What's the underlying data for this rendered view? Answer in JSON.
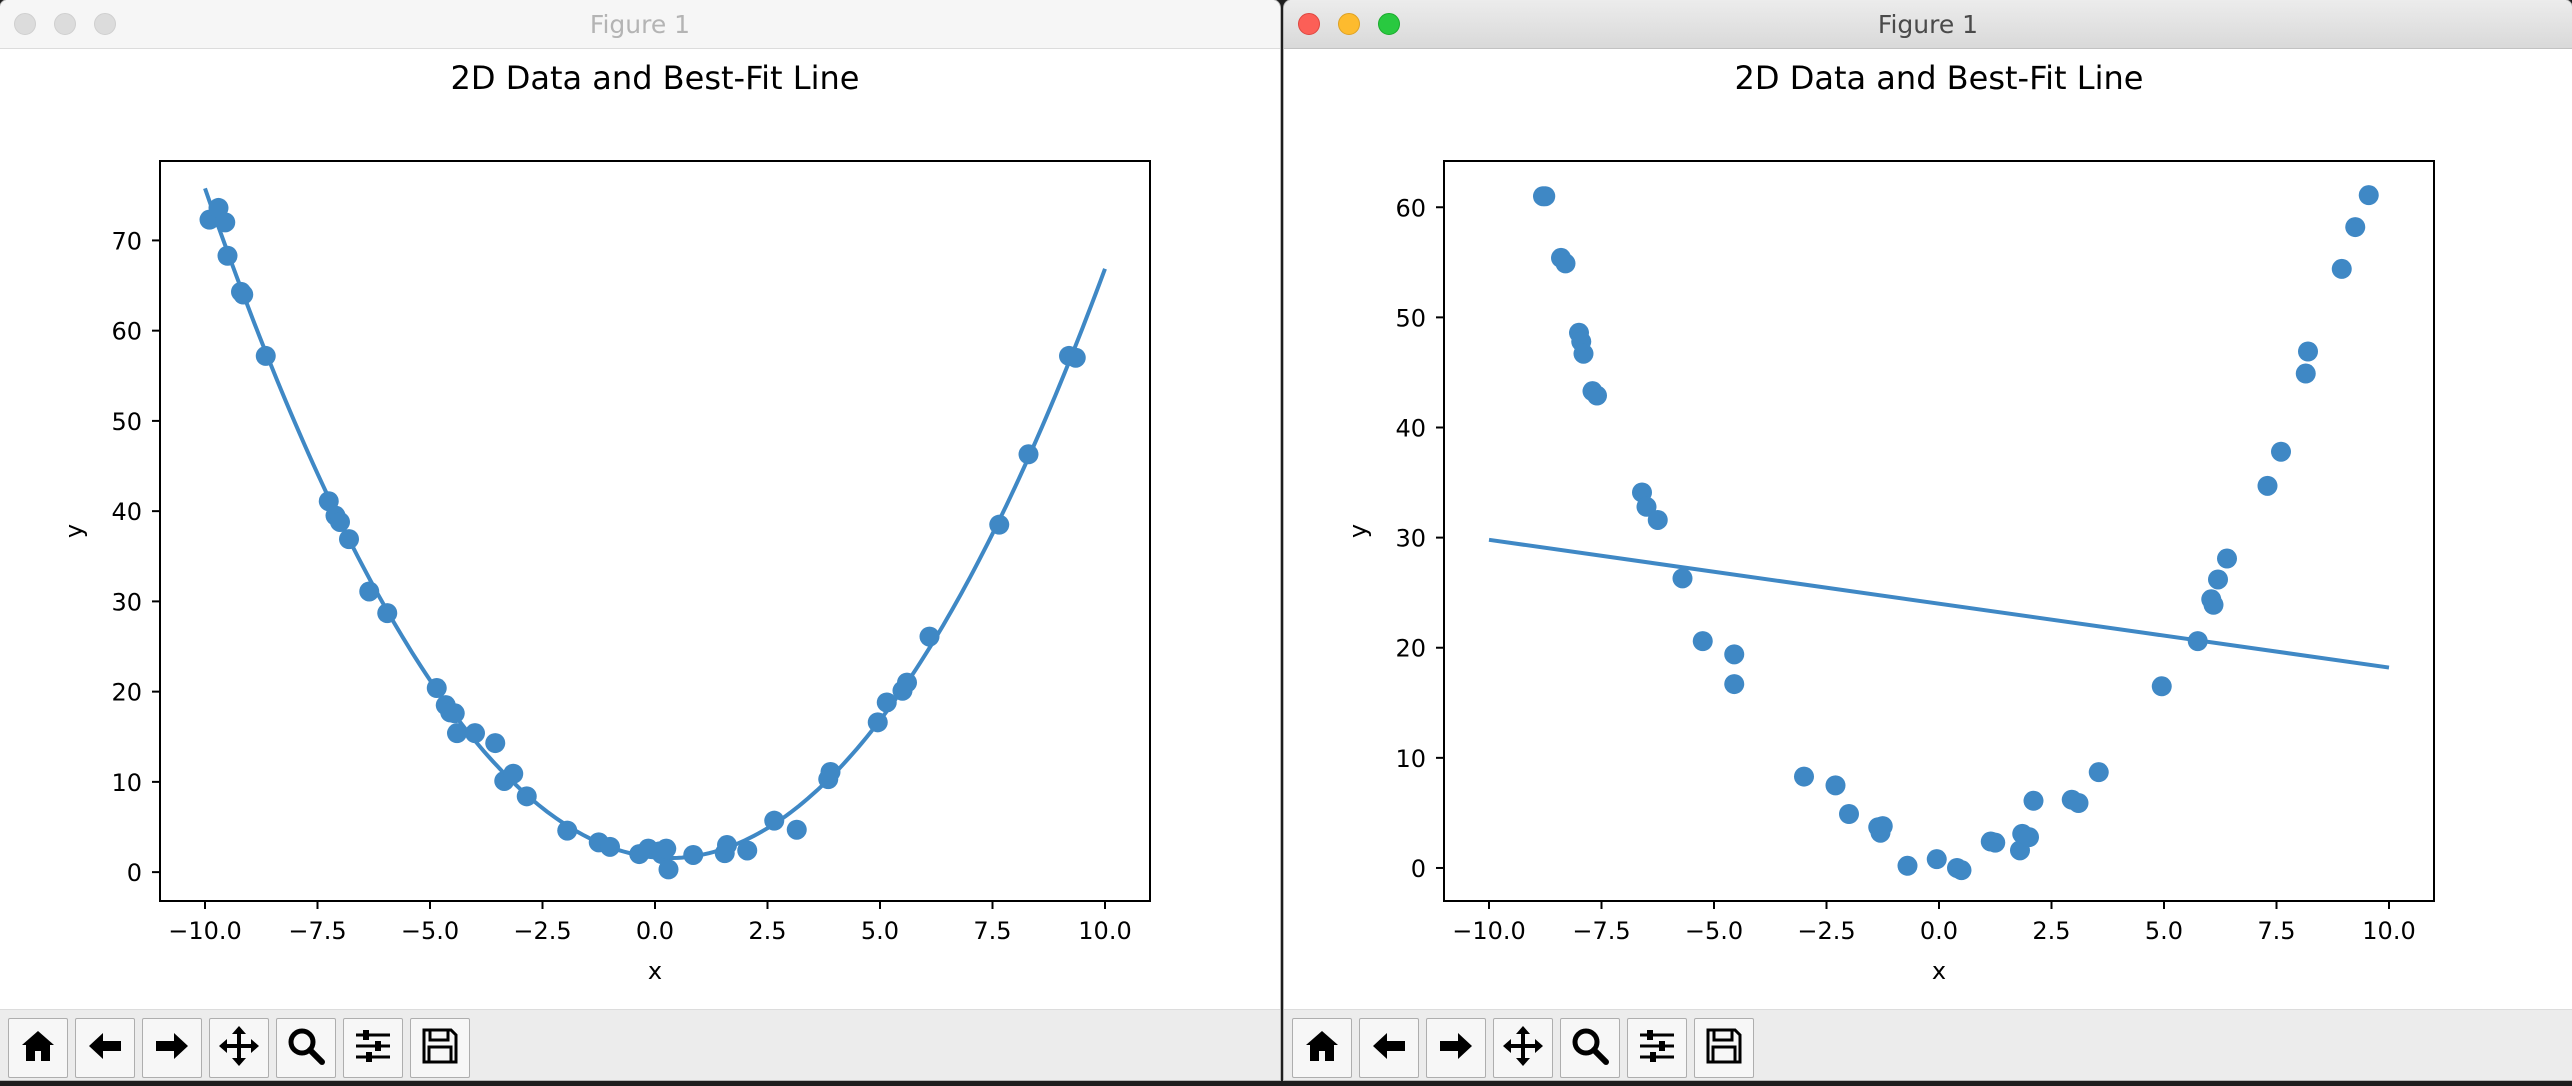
{
  "windows": [
    {
      "title": "Figure 1",
      "state": "inactive",
      "chart_data": {
        "type": "scatter",
        "title": "2D Data and Best-Fit Line",
        "xlabel": "x",
        "ylabel": "y",
        "xlim": [
          -11.0,
          11.0
        ],
        "ylim": [
          -3.2,
          78.8
        ],
        "xticks": [
          -10,
          -7.5,
          -5,
          -2.5,
          0,
          2.5,
          5,
          7.5,
          10
        ],
        "xtick_labels": [
          "−10.0",
          "−7.5",
          "−5.0",
          "−2.5",
          "0.0",
          "2.5",
          "5.0",
          "7.5",
          "10.0"
        ],
        "yticks": [
          0,
          10,
          20,
          30,
          40,
          50,
          60,
          70
        ],
        "ytick_labels": [
          "0",
          "10",
          "20",
          "30",
          "40",
          "50",
          "60",
          "70"
        ],
        "grid": false,
        "point_color": "#3f88c5",
        "line_color": "#3f88c5",
        "points": [
          [
            -9.9,
            72.3
          ],
          [
            -9.7,
            73.6
          ],
          [
            -9.55,
            72.0
          ],
          [
            -9.5,
            68.3
          ],
          [
            -9.2,
            64.3
          ],
          [
            -9.15,
            64.0
          ],
          [
            -8.65,
            57.2
          ],
          [
            -7.25,
            41.1
          ],
          [
            -7.1,
            39.5
          ],
          [
            -7.0,
            38.8
          ],
          [
            -6.8,
            36.9
          ],
          [
            -6.35,
            31.1
          ],
          [
            -5.95,
            28.7
          ],
          [
            -4.85,
            20.4
          ],
          [
            -4.65,
            18.5
          ],
          [
            -4.55,
            17.7
          ],
          [
            -4.45,
            17.6
          ],
          [
            -4.4,
            15.4
          ],
          [
            -4.0,
            15.4
          ],
          [
            -3.55,
            14.3
          ],
          [
            -3.35,
            10.1
          ],
          [
            -3.15,
            10.9
          ],
          [
            -2.85,
            8.4
          ],
          [
            -1.95,
            4.6
          ],
          [
            -1.25,
            3.3
          ],
          [
            -1.0,
            2.8
          ],
          [
            -0.35,
            2.0
          ],
          [
            -0.15,
            2.6
          ],
          [
            0.1,
            2.3
          ],
          [
            0.15,
            2.0
          ],
          [
            0.25,
            2.6
          ],
          [
            0.3,
            0.3
          ],
          [
            0.85,
            1.9
          ],
          [
            1.55,
            2.1
          ],
          [
            1.6,
            3.0
          ],
          [
            2.05,
            2.4
          ],
          [
            2.65,
            5.7
          ],
          [
            3.15,
            4.7
          ],
          [
            3.85,
            10.3
          ],
          [
            3.9,
            11.1
          ],
          [
            4.95,
            16.6
          ],
          [
            5.15,
            18.8
          ],
          [
            5.5,
            20.1
          ],
          [
            5.6,
            21.0
          ],
          [
            6.1,
            26.1
          ],
          [
            7.65,
            38.5
          ],
          [
            8.3,
            46.3
          ],
          [
            9.2,
            57.2
          ],
          [
            9.35,
            57.0
          ]
        ],
        "fit_curve": {
          "x": [
            -10.0,
            10.0
          ],
          "y_at_ends": [
            75.5,
            66.7
          ]
        }
      }
    },
    {
      "title": "Figure 1",
      "state": "active",
      "chart_data": {
        "type": "scatter",
        "title": "2D Data and Best-Fit Line",
        "xlabel": "x",
        "ylabel": "y",
        "xlim": [
          -11.0,
          11.0
        ],
        "ylim": [
          -3.0,
          64.2
        ],
        "xticks": [
          -10,
          -7.5,
          -5,
          -2.5,
          0,
          2.5,
          5,
          7.5,
          10
        ],
        "xtick_labels": [
          "−10.0",
          "−7.5",
          "−5.0",
          "−2.5",
          "0.0",
          "2.5",
          "5.0",
          "7.5",
          "10.0"
        ],
        "yticks": [
          0,
          10,
          20,
          30,
          40,
          50,
          60
        ],
        "ytick_labels": [
          "0",
          "10",
          "20",
          "30",
          "40",
          "50",
          "60"
        ],
        "grid": false,
        "point_color": "#3f88c5",
        "line_color": "#3f88c5",
        "points": [
          [
            -8.8,
            61.0
          ],
          [
            -8.75,
            61.0
          ],
          [
            -8.4,
            55.4
          ],
          [
            -8.3,
            54.9
          ],
          [
            -8.0,
            48.6
          ],
          [
            -7.95,
            47.8
          ],
          [
            -7.9,
            46.7
          ],
          [
            -7.7,
            43.3
          ],
          [
            -7.6,
            42.9
          ],
          [
            -6.6,
            34.1
          ],
          [
            -6.5,
            32.8
          ],
          [
            -6.25,
            31.6
          ],
          [
            -5.7,
            26.3
          ],
          [
            -5.25,
            20.6
          ],
          [
            -4.55,
            19.4
          ],
          [
            -4.55,
            16.7
          ],
          [
            -3.0,
            8.3
          ],
          [
            -2.3,
            7.5
          ],
          [
            -2.0,
            4.9
          ],
          [
            -1.35,
            3.7
          ],
          [
            -1.3,
            3.2
          ],
          [
            -1.25,
            3.8
          ],
          [
            -0.7,
            0.2
          ],
          [
            -0.05,
            0.8
          ],
          [
            0.4,
            0.0
          ],
          [
            0.5,
            -0.2
          ],
          [
            1.15,
            2.4
          ],
          [
            1.25,
            2.3
          ],
          [
            1.8,
            1.6
          ],
          [
            1.85,
            3.1
          ],
          [
            2.0,
            2.8
          ],
          [
            2.1,
            6.1
          ],
          [
            2.95,
            6.2
          ],
          [
            3.1,
            5.9
          ],
          [
            3.55,
            8.7
          ],
          [
            4.95,
            16.5
          ],
          [
            5.75,
            20.6
          ],
          [
            6.05,
            24.4
          ],
          [
            6.1,
            23.9
          ],
          [
            6.2,
            26.2
          ],
          [
            6.4,
            28.1
          ],
          [
            7.3,
            34.7
          ],
          [
            7.6,
            37.8
          ],
          [
            8.15,
            44.9
          ],
          [
            8.2,
            46.9
          ],
          [
            8.95,
            54.4
          ],
          [
            9.25,
            58.2
          ],
          [
            9.55,
            61.1
          ]
        ],
        "fit_line": {
          "x": [
            -10.0,
            10.0
          ],
          "y": [
            29.8,
            18.2
          ]
        }
      }
    }
  ],
  "toolbar": {
    "buttons": [
      {
        "name": "home-button",
        "icon": "home-icon"
      },
      {
        "name": "back-button",
        "icon": "arrow-left-icon"
      },
      {
        "name": "forward-button",
        "icon": "arrow-right-icon"
      },
      {
        "name": "pan-button",
        "icon": "move-icon"
      },
      {
        "name": "zoom-button",
        "icon": "magnifier-icon"
      },
      {
        "name": "configure-subplots-button",
        "icon": "sliders-icon"
      },
      {
        "name": "save-button",
        "icon": "floppy-disk-icon"
      }
    ]
  }
}
